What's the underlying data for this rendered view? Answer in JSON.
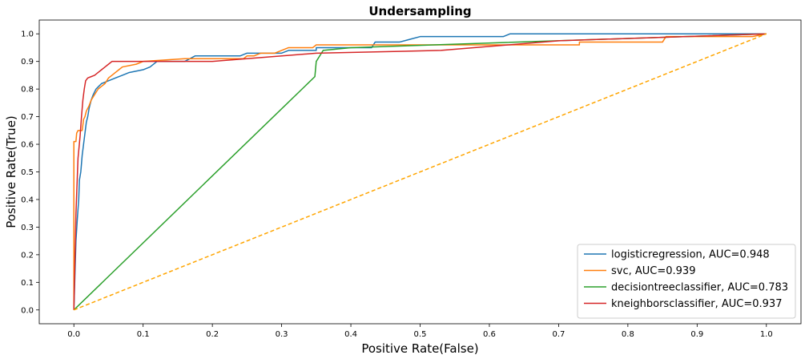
{
  "chart_data": {
    "type": "line",
    "title": "Undersampling",
    "xlabel": "Positive Rate(False)",
    "ylabel": "Positive Rate(True)",
    "xlim": [
      -0.05,
      1.05
    ],
    "ylim": [
      -0.05,
      1.05
    ],
    "xticks": [
      0.0,
      0.1,
      0.2,
      0.3,
      0.4,
      0.5,
      0.6,
      0.7,
      0.8,
      0.9,
      1.0
    ],
    "yticks": [
      0.0,
      0.1,
      0.2,
      0.3,
      0.4,
      0.5,
      0.6,
      0.7,
      0.8,
      0.9,
      1.0
    ],
    "xtick_labels": [
      "0.0",
      "0.1",
      "0.2",
      "0.3",
      "0.4",
      "0.5",
      "0.6",
      "0.7",
      "0.8",
      "0.9",
      "1.0"
    ],
    "ytick_labels": [
      "0.0",
      "0.1",
      "0.2",
      "0.3",
      "0.4",
      "0.5",
      "0.6",
      "0.7",
      "0.8",
      "0.9",
      "1.0"
    ],
    "grid": false,
    "legend_position": "lower-right",
    "series": [
      {
        "name": "logisticregression, AUC=0.948",
        "color": "#1f77b4",
        "points": [
          [
            0,
            0
          ],
          [
            0.003,
            0.25
          ],
          [
            0.005,
            0.33
          ],
          [
            0.007,
            0.4
          ],
          [
            0.008,
            0.47
          ],
          [
            0.01,
            0.5
          ],
          [
            0.012,
            0.56
          ],
          [
            0.014,
            0.6
          ],
          [
            0.016,
            0.64
          ],
          [
            0.018,
            0.68
          ],
          [
            0.02,
            0.7
          ],
          [
            0.022,
            0.73
          ],
          [
            0.025,
            0.76
          ],
          [
            0.028,
            0.78
          ],
          [
            0.032,
            0.8
          ],
          [
            0.036,
            0.81
          ],
          [
            0.04,
            0.82
          ],
          [
            0.05,
            0.83
          ],
          [
            0.06,
            0.84
          ],
          [
            0.07,
            0.85
          ],
          [
            0.08,
            0.86
          ],
          [
            0.1,
            0.87
          ],
          [
            0.11,
            0.88
          ],
          [
            0.12,
            0.9
          ],
          [
            0.16,
            0.9
          ],
          [
            0.175,
            0.92
          ],
          [
            0.24,
            0.92
          ],
          [
            0.25,
            0.93
          ],
          [
            0.3,
            0.93
          ],
          [
            0.31,
            0.94
          ],
          [
            0.35,
            0.94
          ],
          [
            0.35,
            0.95
          ],
          [
            0.43,
            0.95
          ],
          [
            0.435,
            0.97
          ],
          [
            0.47,
            0.97
          ],
          [
            0.5,
            0.99
          ],
          [
            0.62,
            0.99
          ],
          [
            0.63,
            1.0
          ],
          [
            1.0,
            1.0
          ]
        ]
      },
      {
        "name": "svc, AUC=0.939",
        "color": "#ff7f0e",
        "points": [
          [
            0,
            0
          ],
          [
            0.0,
            0.61
          ],
          [
            0.003,
            0.61
          ],
          [
            0.004,
            0.64
          ],
          [
            0.006,
            0.65
          ],
          [
            0.012,
            0.65
          ],
          [
            0.014,
            0.69
          ],
          [
            0.016,
            0.7
          ],
          [
            0.018,
            0.72
          ],
          [
            0.022,
            0.74
          ],
          [
            0.025,
            0.76
          ],
          [
            0.03,
            0.78
          ],
          [
            0.035,
            0.8
          ],
          [
            0.04,
            0.81
          ],
          [
            0.045,
            0.82
          ],
          [
            0.05,
            0.84
          ],
          [
            0.055,
            0.85
          ],
          [
            0.06,
            0.86
          ],
          [
            0.065,
            0.87
          ],
          [
            0.07,
            0.88
          ],
          [
            0.09,
            0.89
          ],
          [
            0.1,
            0.9
          ],
          [
            0.16,
            0.91
          ],
          [
            0.245,
            0.91
          ],
          [
            0.25,
            0.92
          ],
          [
            0.26,
            0.92
          ],
          [
            0.27,
            0.93
          ],
          [
            0.29,
            0.93
          ],
          [
            0.3,
            0.94
          ],
          [
            0.31,
            0.95
          ],
          [
            0.345,
            0.95
          ],
          [
            0.35,
            0.96
          ],
          [
            0.5,
            0.96
          ],
          [
            0.52,
            0.96
          ],
          [
            0.73,
            0.96
          ],
          [
            0.73,
            0.97
          ],
          [
            0.85,
            0.97
          ],
          [
            0.855,
            0.99
          ],
          [
            0.98,
            0.99
          ],
          [
            1.0,
            1.0
          ]
        ]
      },
      {
        "name": "decisiontreeclassifier, AUC=0.783",
        "color": "#2ca02c",
        "points": [
          [
            0,
            0
          ],
          [
            0.348,
            0.845
          ],
          [
            0.35,
            0.9
          ],
          [
            0.36,
            0.94
          ],
          [
            0.4,
            0.95
          ],
          [
            1.0,
            1.0
          ]
        ]
      },
      {
        "name": "kneighborsclassifier, AUC=0.937",
        "color": "#d62728",
        "points": [
          [
            0,
            0
          ],
          [
            0.003,
            0.35
          ],
          [
            0.006,
            0.55
          ],
          [
            0.009,
            0.63
          ],
          [
            0.011,
            0.7
          ],
          [
            0.013,
            0.76
          ],
          [
            0.015,
            0.8
          ],
          [
            0.017,
            0.83
          ],
          [
            0.02,
            0.84
          ],
          [
            0.025,
            0.845
          ],
          [
            0.03,
            0.85
          ],
          [
            0.035,
            0.86
          ],
          [
            0.04,
            0.87
          ],
          [
            0.045,
            0.88
          ],
          [
            0.05,
            0.89
          ],
          [
            0.055,
            0.9
          ],
          [
            0.12,
            0.9
          ],
          [
            0.2,
            0.9
          ],
          [
            0.35,
            0.93
          ],
          [
            0.53,
            0.94
          ],
          [
            0.7,
            0.975
          ],
          [
            1.0,
            1.0
          ]
        ]
      },
      {
        "name": "",
        "color": "#ffa500",
        "dashed": true,
        "points": [
          [
            0,
            0
          ],
          [
            1,
            1
          ]
        ]
      }
    ]
  }
}
